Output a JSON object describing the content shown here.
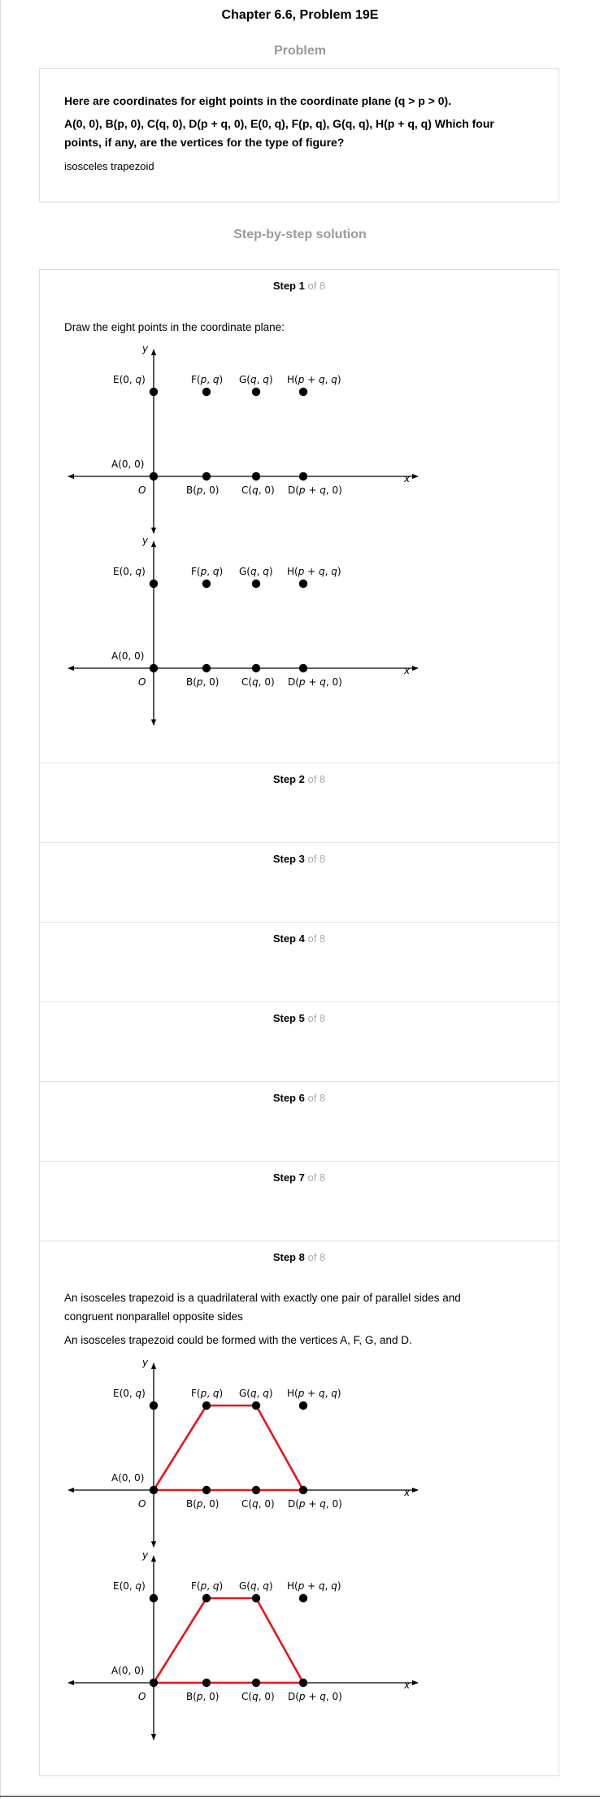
{
  "header": {
    "title": "Chapter 6.6, Problem 19E"
  },
  "problem": {
    "section_label": "Problem",
    "question_line1": "Here are coordinates for eight points in the coordinate plane (q > p > 0).",
    "question_line2": "A(0, 0), B(p, 0), C(q, 0), D(p + q, 0), E(0, q), F(p, q), G(q, q), H(p + q, q) Which four",
    "question_line3": "points, if any, are the vertices for the type of figure?",
    "answer": "isosceles trapezoid"
  },
  "solution": {
    "section_label": "Step-by-step solution",
    "of_total": "of 8",
    "steps": [
      {
        "label": "Step 1"
      },
      {
        "label": "Step 2"
      },
      {
        "label": "Step 3"
      },
      {
        "label": "Step 4"
      },
      {
        "label": "Step 5"
      },
      {
        "label": "Step 6"
      },
      {
        "label": "Step 7"
      },
      {
        "label": "Step 8"
      }
    ],
    "step1_text": "Draw the eight points in the coordinate plane:",
    "step8_text1": "An isosceles trapezoid is a quadrilateral with exactly one pair of parallel sides and",
    "step8_text2": "congruent nonparallel opposite sides",
    "step8_text3": "An isosceles trapezoid could be formed with the vertices A, F, G, and D."
  },
  "figure": {
    "axis_x": "x",
    "axis_y": "y",
    "origin": "O",
    "points": {
      "E": "E(0, q)",
      "F": "F(p, q)",
      "G": "G(q, q)",
      "H": "H(p + q, q)",
      "A": "A(0, 0)",
      "B": "B(p, 0)",
      "C": "C(q, 0)",
      "D": "D(p + q, 0)"
    },
    "trapezoid_color": "#e8141b"
  }
}
